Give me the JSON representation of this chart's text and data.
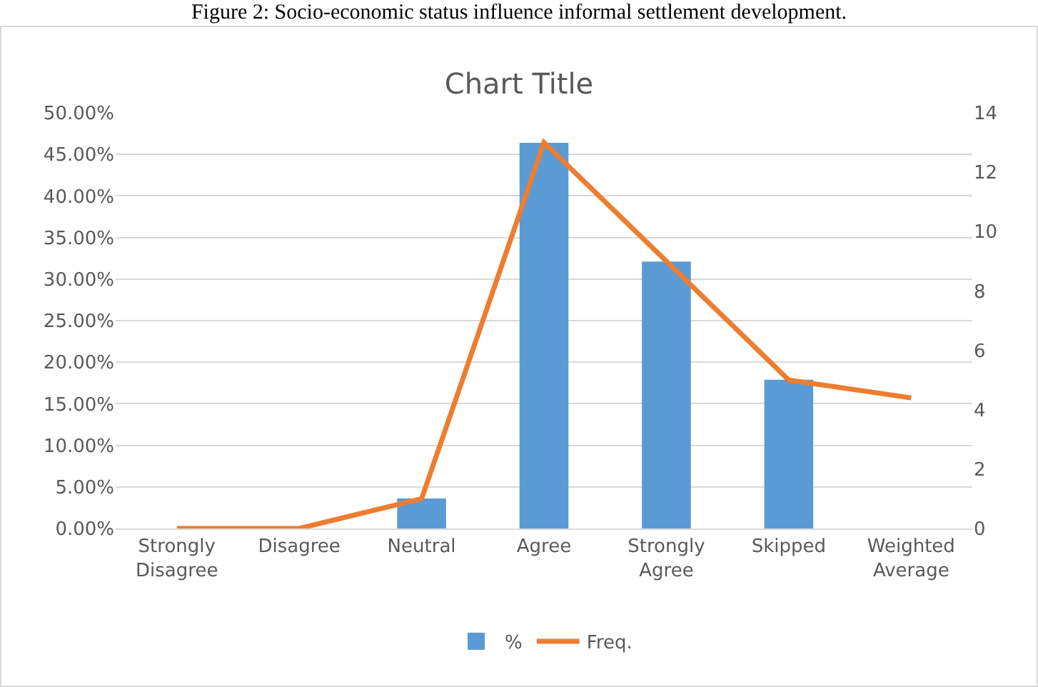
{
  "chart_data": {
    "type": "bar",
    "title": "Chart Title",
    "annotations": [
      "Figure 2: Socio-economic status influence informal settlement development."
    ],
    "categories": [
      "Strongly Disagree",
      "Disagree",
      "Neutral",
      "Agree",
      "Strongly Agree",
      "Skipped",
      "Weighted Average"
    ],
    "series": [
      {
        "name": "%",
        "color": "#5b9bd5",
        "values": [
          0,
          0,
          3.6,
          46.4,
          32.1,
          17.9,
          null
        ]
      },
      {
        "name": "Freq.",
        "type": "line",
        "axis": "y2",
        "color": "#ed7d31",
        "values": [
          0,
          0,
          1,
          13,
          9,
          5,
          4.4
        ]
      }
    ],
    "ylim": [
      0,
      50
    ],
    "yticks": [
      {
        "value": 0,
        "label": "0.00%"
      },
      {
        "value": 5,
        "label": "5.00%"
      },
      {
        "value": 10,
        "label": "10.00%"
      },
      {
        "value": 15,
        "label": "15.00%"
      },
      {
        "value": 20,
        "label": "20.00%"
      },
      {
        "value": 25,
        "label": "25.00%"
      },
      {
        "value": 30,
        "label": "30.00%"
      },
      {
        "value": 35,
        "label": "35.00%"
      },
      {
        "value": 40,
        "label": "40.00%"
      },
      {
        "value": 45,
        "label": "45.00%"
      },
      {
        "value": 50,
        "label": "50.00%"
      }
    ],
    "y2lim": [
      0,
      14
    ],
    "y2ticks": [
      0,
      2,
      4,
      6,
      8,
      10,
      12,
      14
    ],
    "grid": "y",
    "legend": "bottom",
    "marker": "none"
  }
}
